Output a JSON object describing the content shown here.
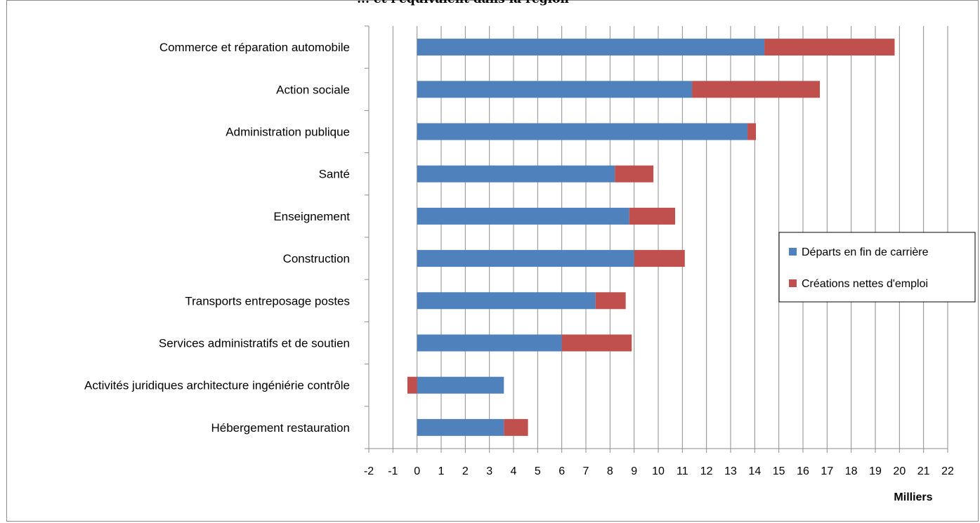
{
  "chart_data": {
    "type": "bar",
    "orientation": "horizontal",
    "stacked": true,
    "title": "... et l'équivalent dans la région",
    "categories": [
      "Commerce et réparation automobile",
      "Action sociale",
      "Administration publique",
      "Santé",
      "Enseignement",
      "Construction",
      "Transports entreposage postes",
      "Services administratifs et de soutien",
      "Activités juridiques architecture ingéniérie contrôle",
      "Hébergement restauration"
    ],
    "series": [
      {
        "name": "Départs en fin de carrière",
        "color": "#4f81bd",
        "values": [
          14.4,
          11.4,
          13.7,
          8.2,
          8.8,
          9.0,
          7.4,
          6.0,
          3.6,
          3.6
        ]
      },
      {
        "name": "Créations nettes d'emploi",
        "color": "#c0504d",
        "values": [
          5.4,
          5.3,
          0.35,
          1.6,
          1.9,
          2.1,
          1.25,
          2.9,
          -0.4,
          1.0
        ]
      }
    ],
    "xlim": [
      -2,
      22
    ],
    "xticks": [
      "-2",
      "-1",
      "0",
      "1",
      "2",
      "3",
      "4",
      "5",
      "6",
      "7",
      "8",
      "9",
      "10",
      "11",
      "12",
      "13",
      "14",
      "15",
      "16",
      "17",
      "18",
      "19",
      "20",
      "21",
      "22"
    ],
    "xlabel": "Milliers",
    "ylabel": "",
    "grid": true,
    "legend_position": "right"
  }
}
